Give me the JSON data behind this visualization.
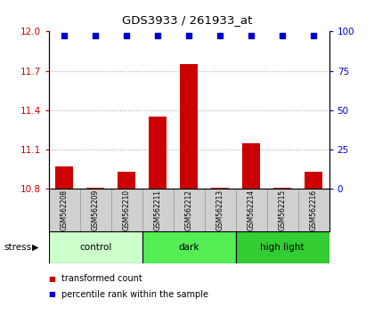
{
  "title": "GDS3933 / 261933_at",
  "samples": [
    "GSM562208",
    "GSM562209",
    "GSM562210",
    "GSM562211",
    "GSM562212",
    "GSM562213",
    "GSM562214",
    "GSM562215",
    "GSM562216"
  ],
  "bar_values": [
    10.97,
    10.81,
    10.93,
    11.35,
    11.75,
    10.81,
    11.15,
    10.81,
    10.93
  ],
  "blue_dot_values": [
    100,
    100,
    100,
    100,
    100,
    100,
    100,
    100,
    100
  ],
  "ylim_left": [
    10.8,
    12.0
  ],
  "ylim_right": [
    0,
    100
  ],
  "yticks_left": [
    10.8,
    11.1,
    11.4,
    11.7,
    12.0
  ],
  "yticks_right": [
    0,
    25,
    50,
    75,
    100
  ],
  "bar_color": "#cc0000",
  "dot_color": "#0000cc",
  "bar_width": 0.55,
  "groups": [
    {
      "label": "control",
      "indices": [
        0,
        1,
        2
      ],
      "color": "#ccffcc"
    },
    {
      "label": "dark",
      "indices": [
        3,
        4,
        5
      ],
      "color": "#55ee55"
    },
    {
      "label": "high light",
      "indices": [
        6,
        7,
        8
      ],
      "color": "#33cc33"
    }
  ],
  "stress_label": "stress",
  "legend_red_label": "transformed count",
  "legend_blue_label": "percentile rank within the sample",
  "grid_color": "#aaaaaa",
  "xlabel_color": "#cc0000",
  "ylabel_right_color": "#0000cc",
  "sample_box_color": "#d0d0d0",
  "sample_box_edge": "#999999"
}
